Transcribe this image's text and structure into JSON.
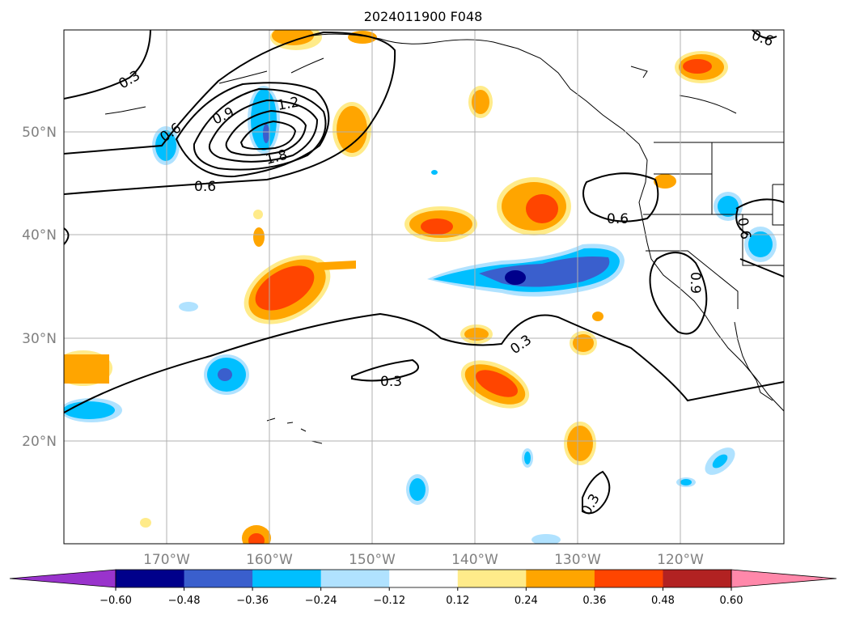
{
  "title": "2024011900 F048",
  "map": {
    "lat_labels": [
      "50°N",
      "40°N",
      "30°N",
      "20°N"
    ],
    "lon_labels": [
      "170°W",
      "160°W",
      "150°W",
      "140°W",
      "130°W",
      "120°W"
    ],
    "contour_labels": [
      "0.3",
      "0.9",
      "1.2",
      "0.6",
      "1.8",
      "0.6",
      "0.6",
      "0.6",
      "0.6",
      "0.9",
      "0.3",
      "0.3",
      "0.3"
    ]
  },
  "colorbar": {
    "ticks": [
      "−0.60",
      "−0.48",
      "−0.36",
      "−0.24",
      "−0.12",
      "0.12",
      "0.24",
      "0.36",
      "0.48",
      "0.60"
    ],
    "colors": [
      "#9933cc",
      "#00008b",
      "#3a5fcd",
      "#00bfff",
      "#b0e2ff",
      "#ffffff",
      "#ffeb8a",
      "#ffa500",
      "#ff4500",
      "#b22222",
      "#ff88aa"
    ]
  }
}
